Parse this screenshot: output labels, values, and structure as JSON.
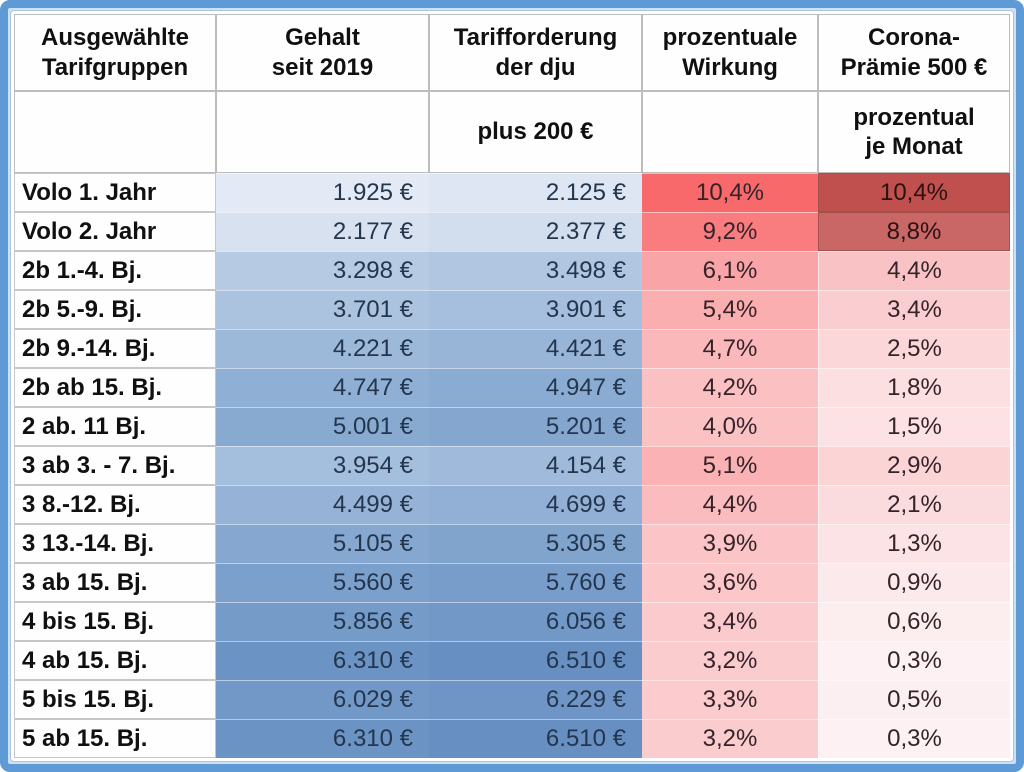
{
  "colors": {
    "frame_blue": "#5E9AD5",
    "grid_line_gray": "#BDBDBD",
    "blue_scale_max": "#5E8FC9",
    "blue_scale_min": "#E3EAF5",
    "red_scale_max": "#F8696B",
    "corona_dark_red": "#C0504D"
  },
  "table": {
    "columns": [
      {
        "title": "Ausgewählte\nTarifgruppen",
        "subtitle": ""
      },
      {
        "title": "Gehalt\nseit 2019",
        "subtitle": ""
      },
      {
        "title": "Tarifforderung\nder dju",
        "subtitle": "plus 200 €"
      },
      {
        "title": "prozentuale\nWirkung",
        "subtitle": ""
      },
      {
        "title": "Corona-\nPrämie 500 €",
        "subtitle": "prozentual\nje Monat"
      }
    ],
    "rows": [
      {
        "label": "Volo 1. Jahr",
        "gehalt": "1.925 €",
        "gehalt_bg": "#E3EAF5",
        "forderung": "2.125 €",
        "forderung_bg": "#DDE6F2",
        "wirkung": "10,4%",
        "wirkung_bg": "#F8696B",
        "corona": "10,4%",
        "corona_bg": "#C0504D",
        "corona_dark": true
      },
      {
        "label": "Volo 2. Jahr",
        "gehalt": "2.177 €",
        "gehalt_bg": "#D8E1F0",
        "forderung": "2.377 €",
        "forderung_bg": "#D2DDEE",
        "wirkung": "9,2%",
        "wirkung_bg": "#F97C7E",
        "corona": "8,8%",
        "corona_bg": "#C96766",
        "corona_dark": true
      },
      {
        "label": "2b 1.-4. Bj.",
        "gehalt": "3.298 €",
        "gehalt_bg": "#B6CAE4",
        "forderung": "3.498 €",
        "forderung_bg": "#B1C6E1",
        "wirkung": "6,1%",
        "wirkung_bg": "#F9A4A6",
        "corona": "4,4%",
        "corona_bg": "#F9C3C5",
        "corona_dark": false
      },
      {
        "label": "2b 5.-9. Bj.",
        "gehalt": "3.701 €",
        "gehalt_bg": "#ACC3E0",
        "forderung": "3.901 €",
        "forderung_bg": "#A7BFDE",
        "wirkung": "5,4%",
        "wirkung_bg": "#FAAEB0",
        "corona": "3,4%",
        "corona_bg": "#FACED0",
        "corona_dark": false
      },
      {
        "label": "2b 9.-14. Bj.",
        "gehalt": "4.221 €",
        "gehalt_bg": "#9DB9DA",
        "forderung": "4.421 €",
        "forderung_bg": "#98B5D8",
        "wirkung": "4,7%",
        "wirkung_bg": "#FAB8BA",
        "corona": "2,5%",
        "corona_bg": "#FBD7D9",
        "corona_dark": false
      },
      {
        "label": "2b ab 15. Bj.",
        "gehalt": "4.747 €",
        "gehalt_bg": "#90AFD5",
        "forderung": "4.947 €",
        "forderung_bg": "#8BACD2",
        "wirkung": "4,2%",
        "wirkung_bg": "#FBC0C2",
        "corona": "1,8%",
        "corona_bg": "#FBDFE1",
        "corona_dark": false
      },
      {
        "label": "2 ab. 11 Bj.",
        "gehalt": "5.001 €",
        "gehalt_bg": "#88AAD1",
        "forderung": "5.201 €",
        "forderung_bg": "#84A6CF",
        "wirkung": "4,0%",
        "wirkung_bg": "#FBC2C4",
        "corona": "1,5%",
        "corona_bg": "#FCE2E4",
        "corona_dark": false
      },
      {
        "label": "3 ab 3. - 7. Bj.",
        "gehalt": "3.954 €",
        "gehalt_bg": "#A4BEDD",
        "forderung": "4.154 €",
        "forderung_bg": "#9FBADB",
        "wirkung": "5,1%",
        "wirkung_bg": "#FAB2B4",
        "corona": "2,9%",
        "corona_bg": "#FBD4D6",
        "corona_dark": false
      },
      {
        "label": "3 8.-12. Bj.",
        "gehalt": "4.499 €",
        "gehalt_bg": "#96B3D7",
        "forderung": "4.699 €",
        "forderung_bg": "#92B0D5",
        "wirkung": "4,4%",
        "wirkung_bg": "#FABCBE",
        "corona": "2,1%",
        "corona_bg": "#FBDCDE",
        "corona_dark": false
      },
      {
        "label": "3 13.-14. Bj.",
        "gehalt": "5.105 €",
        "gehalt_bg": "#85A7D0",
        "forderung": "5.305 €",
        "forderung_bg": "#81A4CD",
        "wirkung": "3,9%",
        "wirkung_bg": "#FBC4C6",
        "corona": "1,3%",
        "corona_bg": "#FCE4E6",
        "corona_dark": false
      },
      {
        "label": "3 ab 15. Bj.",
        "gehalt": "5.560 €",
        "gehalt_bg": "#7CA0CC",
        "forderung": "5.760 €",
        "forderung_bg": "#789DCA",
        "wirkung": "3,6%",
        "wirkung_bg": "#FBC7C9",
        "corona": "0,9%",
        "corona_bg": "#FCE9EB",
        "corona_dark": false
      },
      {
        "label": "4 bis 15. Bj.",
        "gehalt": "5.856 €",
        "gehalt_bg": "#759BC9",
        "forderung": "6.056 €",
        "forderung_bg": "#7198C6",
        "wirkung": "3,4%",
        "wirkung_bg": "#FBCACC",
        "corona": "0,6%",
        "corona_bg": "#FCEDEF",
        "corona_dark": false
      },
      {
        "label": "4 ab 15. Bj.",
        "gehalt": "6.310 €",
        "gehalt_bg": "#6B93C4",
        "forderung": "6.510 €",
        "forderung_bg": "#678FC2",
        "wirkung": "3,2%",
        "wirkung_bg": "#FBCCCE",
        "corona": "0,3%",
        "corona_bg": "#FDF1F3",
        "corona_dark": false
      },
      {
        "label": "5 bis 15. Bj.",
        "gehalt": "6.029 €",
        "gehalt_bg": "#7298C7",
        "forderung": "6.229 €",
        "forderung_bg": "#6E95C5",
        "wirkung": "3,3%",
        "wirkung_bg": "#FBCBCD",
        "corona": "0,5%",
        "corona_bg": "#FCEFF1",
        "corona_dark": false
      },
      {
        "label": "5 ab 15. Bj.",
        "gehalt": "6.310 €",
        "gehalt_bg": "#6B93C4",
        "forderung": "6.510 €",
        "forderung_bg": "#678FC2",
        "wirkung": "3,2%",
        "wirkung_bg": "#FBCCCE",
        "corona": "0,3%",
        "corona_bg": "#FDF1F3",
        "corona_dark": false
      }
    ]
  },
  "chart_data": {
    "type": "table",
    "title": "",
    "categories": [
      "Volo 1. Jahr",
      "Volo 2. Jahr",
      "2b 1.-4. Bj.",
      "2b 5.-9. Bj.",
      "2b 9.-14. Bj.",
      "2b ab 15. Bj.",
      "2 ab. 11 Bj.",
      "3 ab 3. - 7. Bj.",
      "3 8.-12. Bj.",
      "3 13.-14. Bj.",
      "3 ab 15. Bj.",
      "4 bis 15. Bj.",
      "4 ab 15. Bj.",
      "5 bis 15. Bj.",
      "5 ab 15. Bj."
    ],
    "series": [
      {
        "name": "Gehalt seit 2019 (EUR)",
        "values": [
          1925,
          2177,
          3298,
          3701,
          4221,
          4747,
          5001,
          3954,
          4499,
          5105,
          5560,
          5856,
          6310,
          6029,
          6310
        ]
      },
      {
        "name": "Tarifforderung der dju plus 200 EUR (EUR)",
        "values": [
          2125,
          2377,
          3498,
          3901,
          4421,
          4947,
          5201,
          4154,
          4699,
          5305,
          5760,
          6056,
          6510,
          6229,
          6510
        ]
      },
      {
        "name": "prozentuale Wirkung (%)",
        "values": [
          10.4,
          9.2,
          6.1,
          5.4,
          4.7,
          4.2,
          4.0,
          5.1,
          4.4,
          3.9,
          3.6,
          3.4,
          3.2,
          3.3,
          3.2
        ]
      },
      {
        "name": "Corona-Prämie 500 EUR prozentual je Monat (%)",
        "values": [
          10.4,
          8.8,
          4.4,
          3.4,
          2.5,
          1.8,
          1.5,
          2.9,
          2.1,
          1.3,
          0.9,
          0.6,
          0.3,
          0.5,
          0.3
        ]
      }
    ],
    "layout": {
      "conditional_formatting": "salary columns white-to-blue scale, percentage columns white-to-red scale, Corona rows 1-2 dark red",
      "grid": true,
      "legend": "none"
    }
  }
}
